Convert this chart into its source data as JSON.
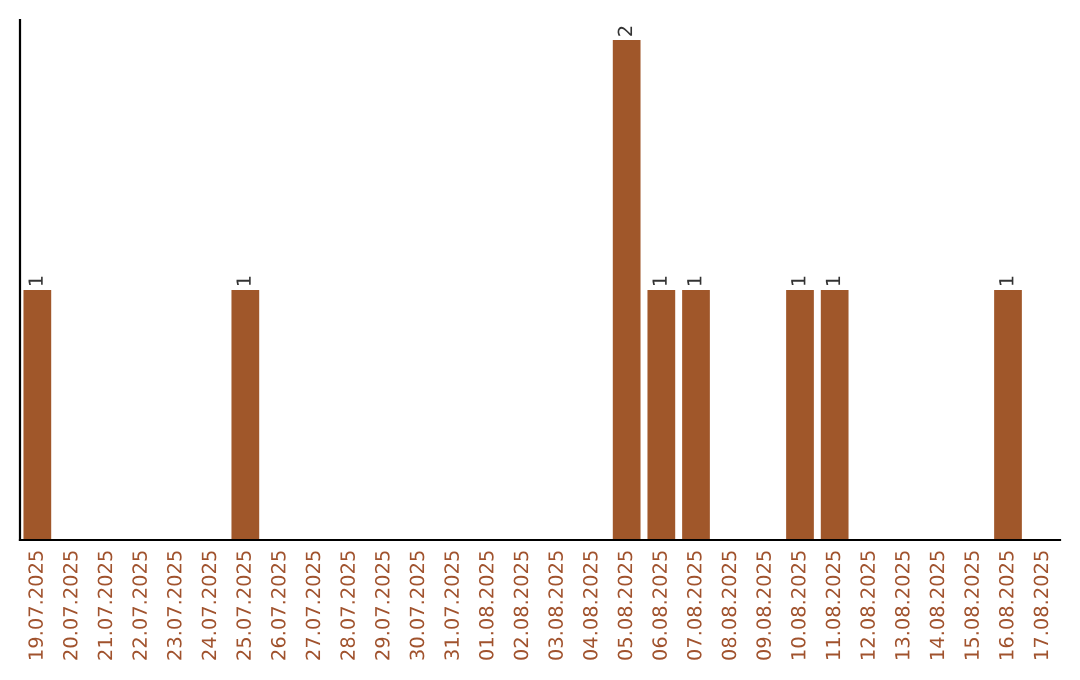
{
  "chart_data": {
    "type": "bar",
    "categories": [
      "19.07.2025",
      "20.07.2025",
      "21.07.2025",
      "22.07.2025",
      "23.07.2025",
      "24.07.2025",
      "25.07.2025",
      "26.07.2025",
      "27.07.2025",
      "28.07.2025",
      "29.07.2025",
      "30.07.2025",
      "31.07.2025",
      "01.08.2025",
      "02.08.2025",
      "03.08.2025",
      "04.08.2025",
      "05.08.2025",
      "06.08.2025",
      "07.08.2025",
      "08.08.2025",
      "09.08.2025",
      "10.08.2025",
      "11.08.2025",
      "12.08.2025",
      "13.08.2025",
      "14.08.2025",
      "15.08.2025",
      "16.08.2025",
      "17.08.2025"
    ],
    "values": [
      1,
      0,
      0,
      0,
      0,
      0,
      1,
      0,
      0,
      0,
      0,
      0,
      0,
      0,
      0,
      0,
      0,
      2,
      1,
      1,
      0,
      0,
      1,
      1,
      0,
      0,
      0,
      0,
      1,
      0
    ],
    "value_labels": [
      "1",
      null,
      null,
      null,
      null,
      null,
      "1",
      null,
      null,
      null,
      null,
      null,
      null,
      null,
      null,
      null,
      null,
      "2",
      "1",
      "1",
      null,
      null,
      "1",
      "1",
      null,
      null,
      null,
      null,
      "1",
      null
    ],
    "color": "#a0572a",
    "ylim": [
      0,
      2.08
    ],
    "tick_labels": "x",
    "grid": false,
    "legend": false
  }
}
